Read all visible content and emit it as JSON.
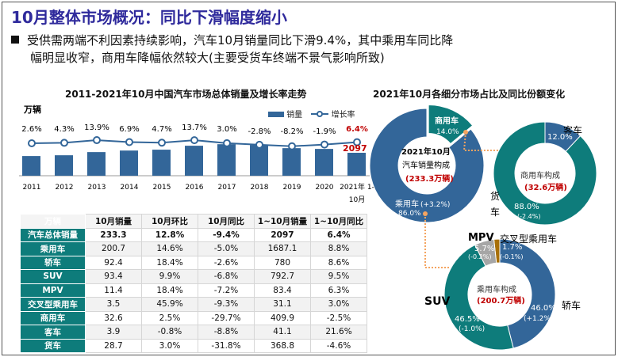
{
  "title": "10月整体市场概况：同比下滑幅度缩小",
  "bullet": {
    "line1": "受供需两端不利因素持续影响，汽车10月销量同比下滑9.4%，其中乘用车同比降",
    "line2": "幅明显收窄，商用车降幅依然较大(主要受货车终端不景气影响所致)"
  },
  "chart_data": [
    {
      "type": "bar",
      "title": "2011-2021年10月中国汽车市场总体销量及增长率走势",
      "ylabel": "万辆",
      "categories": [
        "2011",
        "2012",
        "2013",
        "2014",
        "2015",
        "2016",
        "2017",
        "2018",
        "2019",
        "2020",
        "2021年 1-10月"
      ],
      "legend": {
        "bar": "销量",
        "line": "增长率",
        "placement": "top-right"
      },
      "series": [
        {
          "name": "销量",
          "values": [
            1800,
            1870,
            2160,
            2300,
            2380,
            2740,
            2880,
            2810,
            2520,
            2450,
            2097
          ]
        },
        {
          "name": "增长率",
          "values": [
            2.6,
            4.3,
            13.9,
            6.9,
            4.7,
            13.7,
            3.0,
            -2.8,
            -8.2,
            -1.9,
            6.4
          ]
        }
      ],
      "growth_labels": [
        "2.6%",
        "4.3%",
        "13.9%",
        "6.9%",
        "4.7%",
        "13.7%",
        "3.0%",
        "-2.8%",
        "-8.2%",
        "-1.9%",
        "6.4%"
      ],
      "highlight_value": "2097"
    },
    {
      "type": "pie",
      "title": "2021年10月各细分市场占比及同比份额变化",
      "donuts": [
        {
          "center": [
            "2021年10月",
            "汽车销量构成",
            "(233.3万辆)"
          ],
          "slices": [
            {
              "name": "商用车",
              "value": 14.0,
              "label": "14.0%",
              "color": "#0e7c7b"
            },
            {
              "name": "乘用车",
              "value": 86.0,
              "label": "86.0%",
              "change": "(+3.2%)",
              "color": "#336699"
            }
          ]
        },
        {
          "center": [
            "商用车构成",
            "(32.6万辆)"
          ],
          "slices": [
            {
              "name": "客车",
              "value": 12.0,
              "label": "12.0%",
              "color": "#336699"
            },
            {
              "name": "货车",
              "value": 88.0,
              "label": "88.0%",
              "change": "(-2.4%)",
              "color": "#0e7c7b"
            }
          ]
        },
        {
          "center": [
            "乘用车构成",
            "(200.7万辆)"
          ],
          "slices": [
            {
              "name": "轿车",
              "value": 46.0,
              "label": "46.0%",
              "change": "(+1.2%)",
              "color": "#336699"
            },
            {
              "name": "SUV",
              "value": 46.5,
              "label": "46.5%",
              "change": "(-1.0%)",
              "color": "#0e7c7b"
            },
            {
              "name": "MPV",
              "value": 5.7,
              "label": "5.7%",
              "change": "(-0.2%)",
              "color": "#a6a6a6"
            },
            {
              "name": "交叉型乘用车",
              "value": 1.7,
              "label": "1.7%",
              "change": "(-0.1%)",
              "color": "#a8700a"
            }
          ]
        }
      ]
    }
  ],
  "table": {
    "headers": [
      "万辆",
      "10月销量",
      "10月环比",
      "10月同比",
      "1~10月销量",
      "1~10月同比"
    ],
    "rows": [
      [
        "汽车总体销量",
        "233.3",
        "12.8%",
        "-9.4%",
        "2097",
        "6.4%"
      ],
      [
        "乘用车",
        "200.7",
        "14.6%",
        "-5.0%",
        "1687.1",
        "8.8%"
      ],
      [
        "轿车",
        "92.4",
        "18.4%",
        "-2.6%",
        "780",
        "8.6%"
      ],
      [
        "SUV",
        "93.4",
        "9.9%",
        "-6.8%",
        "792.7",
        "9.5%"
      ],
      [
        "MPV",
        "11.4",
        "18.4%",
        "-7.2%",
        "83.4",
        "6.3%"
      ],
      [
        "交叉型乘用车",
        "3.5",
        "45.9%",
        "-9.3%",
        "31.1",
        "3.0%"
      ],
      [
        "商用车",
        "32.6",
        "2.5%",
        "-29.7%",
        "409.9",
        "-2.5%"
      ],
      [
        "客车",
        "3.9",
        "-0.8%",
        "-8.8%",
        "41.1",
        "21.6%"
      ],
      [
        "货车",
        "28.7",
        "3.0%",
        "-31.8%",
        "368.8",
        "-4.6%"
      ]
    ]
  }
}
